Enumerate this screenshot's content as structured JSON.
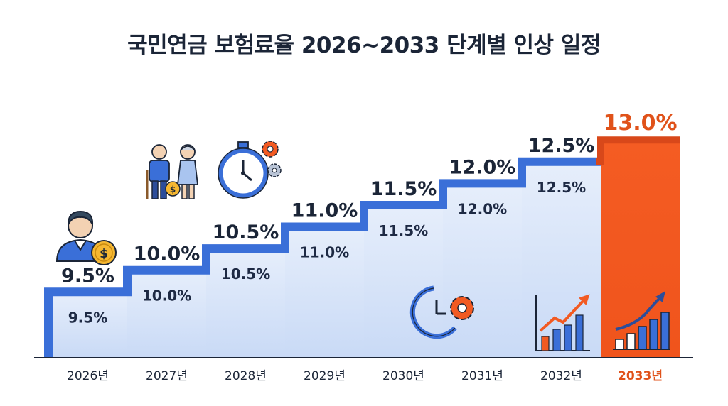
{
  "title": "국민연금 보험료율 2026~2033 단계별 인상 일정",
  "colors": {
    "step_line": "#3a6fd8",
    "highlight": "#f25a22",
    "highlight_text": "#e0521a",
    "text_dark": "#1b2537",
    "baseline": "#1b2537"
  },
  "chart_data": {
    "type": "bar",
    "title": "국민연금 보험료율 2026~2033 단계별 인상 일정",
    "categories": [
      "2026년",
      "2027년",
      "2028년",
      "2029년",
      "2030년",
      "2031년",
      "2032년",
      "2033년"
    ],
    "values": [
      9.5,
      10.0,
      10.5,
      11.0,
      11.5,
      12.0,
      12.5,
      13.0
    ],
    "value_labels": [
      "9.5%",
      "10.0%",
      "10.5%",
      "11.0%",
      "11.5%",
      "12.0%",
      "12.5%",
      "13.0%"
    ],
    "inner_labels": [
      "9.5%",
      "10.0%",
      "10.5%",
      "11.0%",
      "11.5%",
      "12.0%",
      "12.5%",
      ""
    ],
    "highlight_index": 7,
    "ylim": [
      8,
      13.2
    ],
    "xlabel": "",
    "ylabel": "",
    "grid": false,
    "legend": "none"
  },
  "icons": [
    "person-coin-icon",
    "elderly-couple-icon",
    "stopwatch-gears-icon",
    "clock-gear-icon",
    "bar-chart-up-icon",
    "bar-chart-up-white-icon"
  ]
}
